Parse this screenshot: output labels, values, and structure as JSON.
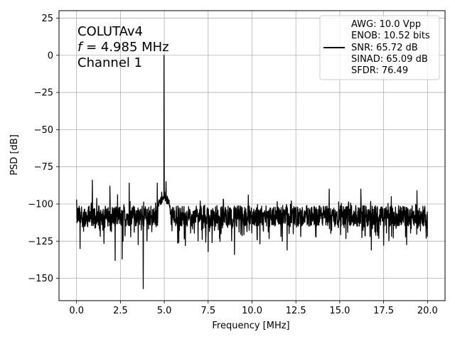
{
  "chart_data": {
    "type": "line",
    "title": "",
    "xlabel": "Frequency [MHz]",
    "ylabel": "PSD [dB]",
    "xlim": [
      -1.0,
      21.0
    ],
    "ylim": [
      -165,
      30
    ],
    "x_ticks": [
      0.0,
      2.5,
      5.0,
      7.5,
      10.0,
      12.5,
      15.0,
      17.5,
      20.0
    ],
    "x_tick_labels": [
      "0.0",
      "2.5",
      "5.0",
      "7.5",
      "10.0",
      "12.5",
      "15.0",
      "17.5",
      "20.0"
    ],
    "y_ticks": [
      25,
      0,
      -25,
      -50,
      -75,
      -100,
      -125,
      -150
    ],
    "y_tick_labels": [
      "25",
      "0",
      "−25",
      "−50",
      "−75",
      "−100",
      "−125",
      "−150"
    ],
    "grid": true,
    "legend_position": "top-right",
    "line_color": "#000000",
    "annotation": {
      "line1": "COLUTAv4",
      "line2_italic": "f",
      "line2_rest": " = 4.985 MHz",
      "line3": "Channel 1"
    },
    "series": [
      {
        "name": "",
        "legend_lines": [
          "AWG: 10.0 Vpp",
          "ENOB: 10.52 bits",
          "SNR: 65.72 dB",
          "SINAD: 65.09 dB",
          "SFDR: 76.49"
        ],
        "noise_floor_db": -108,
        "notable_points": [
          {
            "x": 0.0,
            "y": -97
          },
          {
            "x": 0.2,
            "y": -130
          },
          {
            "x": 0.9,
            "y": -84
          },
          {
            "x": 1.9,
            "y": -88
          },
          {
            "x": 2.2,
            "y": -138
          },
          {
            "x": 2.6,
            "y": -137
          },
          {
            "x": 3.0,
            "y": -86
          },
          {
            "x": 3.8,
            "y": -157
          },
          {
            "x": 4.6,
            "y": -86
          },
          {
            "x": 4.85,
            "y": -92
          },
          {
            "x": 4.985,
            "y": 0
          },
          {
            "x": 5.1,
            "y": -85
          },
          {
            "x": 6.2,
            "y": -128
          },
          {
            "x": 7.5,
            "y": -132
          },
          {
            "x": 9.0,
            "y": -134
          },
          {
            "x": 12.0,
            "y": -131
          },
          {
            "x": 14.4,
            "y": -90
          },
          {
            "x": 16.2,
            "y": -90
          },
          {
            "x": 16.8,
            "y": -131
          },
          {
            "x": 19.4,
            "y": -91
          },
          {
            "x": 20.0,
            "y": -122
          }
        ]
      }
    ]
  }
}
